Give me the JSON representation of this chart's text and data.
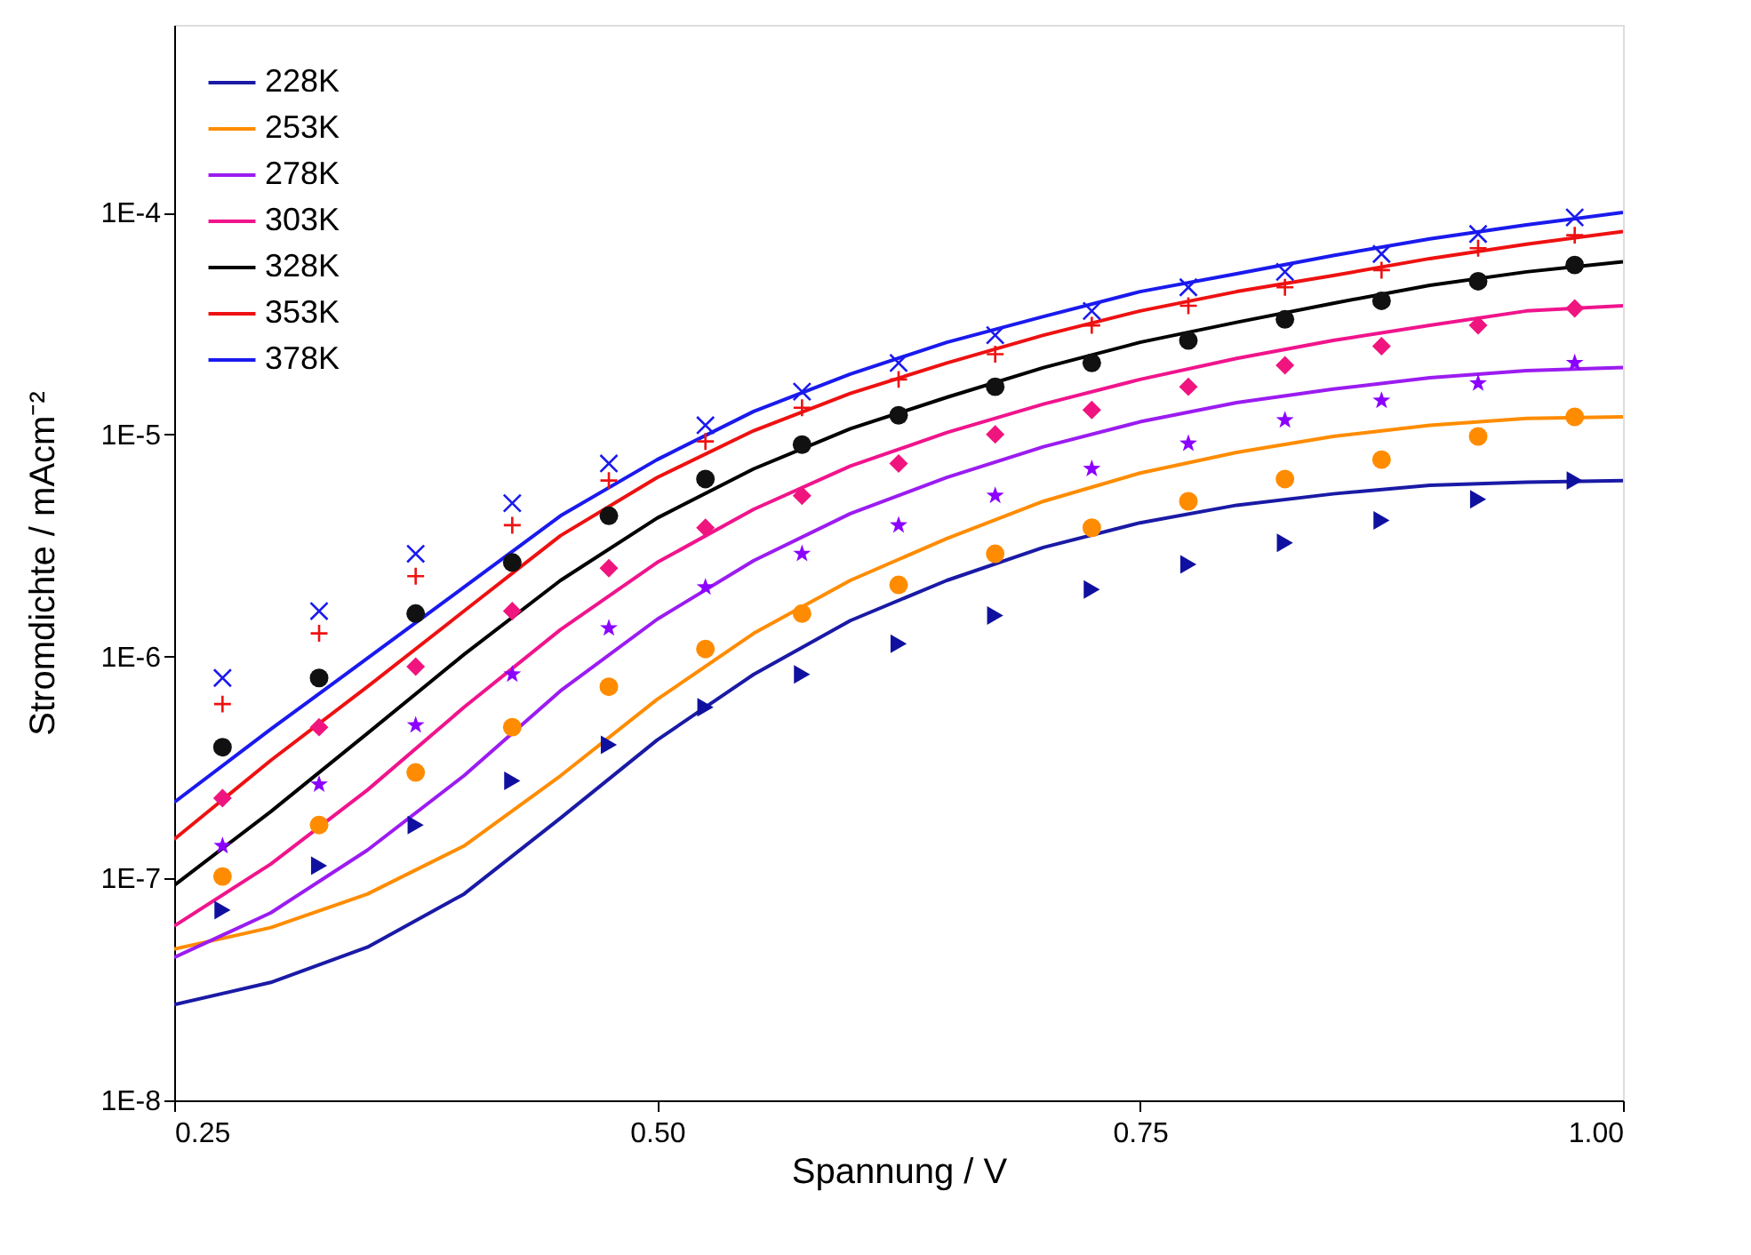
{
  "chart_data": {
    "type": "line",
    "xlabel": "Spannung / V",
    "ylabel": "Stromdichte / mAcm⁻²",
    "log": "y",
    "xlim": [
      0.25,
      1.0
    ],
    "xticks": [
      0.25,
      {
        "value": 0.5,
        "label": "0.50"
      },
      0.75,
      {
        "value": 1.0,
        "label": "1.00"
      }
    ],
    "ylim": [
      1e-08,
      0.0007
    ],
    "yticks": [
      {
        "value": 1e-08,
        "label": "1E-8"
      },
      {
        "value": 1e-07,
        "label": "1E-7"
      },
      {
        "value": 1e-06,
        "label": "1E-6"
      },
      {
        "value": 1e-05,
        "label": "1E-5"
      },
      {
        "value": 0.0001,
        "label": "1E-4"
      }
    ],
    "grid": false,
    "legend": "top left",
    "series": [
      {
        "name": "228K",
        "color": "#1a1aa6",
        "x": [
          0.25,
          0.3,
          0.35,
          0.4,
          0.45,
          0.5,
          0.55,
          0.6,
          0.65,
          0.7,
          0.75,
          0.8,
          0.85,
          0.9,
          0.95,
          1.0
        ],
        "values": [
          2.7e-08,
          3.4e-08,
          4.9e-08,
          8.5e-08,
          1.87e-07,
          4.2e-07,
          8.3e-07,
          1.45e-06,
          2.2e-06,
          3.1e-06,
          4e-06,
          4.8e-06,
          5.4e-06,
          5.9e-06,
          6.1e-06,
          6.2e-06
        ]
      },
      {
        "name": "253K",
        "color": "#ff8c00",
        "x": [
          0.25,
          0.3,
          0.35,
          0.4,
          0.45,
          0.5,
          0.55,
          0.6,
          0.65,
          0.7,
          0.75,
          0.8,
          0.85,
          0.9,
          0.95,
          1.0
        ],
        "values": [
          4.8e-08,
          6e-08,
          8.5e-08,
          1.4e-07,
          2.9e-07,
          6.4e-07,
          1.27e-06,
          2.2e-06,
          3.4e-06,
          5e-06,
          6.7e-06,
          8.3e-06,
          9.8e-06,
          1.1e-05,
          1.18e-05,
          1.2e-05
        ]
      },
      {
        "name": "278K",
        "color": "#9b1cf0",
        "x": [
          0.25,
          0.3,
          0.35,
          0.4,
          0.45,
          0.5,
          0.55,
          0.6,
          0.65,
          0.7,
          0.75,
          0.8,
          0.85,
          0.9,
          0.95,
          1.0
        ],
        "values": [
          4.4e-08,
          7e-08,
          1.34e-07,
          2.9e-07,
          7e-07,
          1.47e-06,
          2.7e-06,
          4.4e-06,
          6.4e-06,
          8.8e-06,
          1.14e-05,
          1.39e-05,
          1.6e-05,
          1.8e-05,
          1.94e-05,
          2e-05
        ]
      },
      {
        "name": "303K",
        "color": "#f0148c",
        "x": [
          0.25,
          0.3,
          0.35,
          0.4,
          0.45,
          0.5,
          0.55,
          0.6,
          0.65,
          0.7,
          0.75,
          0.8,
          0.85,
          0.9,
          0.95,
          1.0
        ],
        "values": [
          6.1e-08,
          1.16e-07,
          2.5e-07,
          5.9e-07,
          1.32e-06,
          2.65e-06,
          4.6e-06,
          7.2e-06,
          1.02e-05,
          1.37e-05,
          1.77e-05,
          2.2e-05,
          2.65e-05,
          3.1e-05,
          3.6e-05,
          3.8e-05
        ]
      },
      {
        "name": "328K",
        "color": "#000000",
        "x": [
          0.25,
          0.3,
          0.35,
          0.4,
          0.45,
          0.5,
          0.55,
          0.6,
          0.65,
          0.7,
          0.75,
          0.8,
          0.85,
          0.9,
          0.95,
          1.0
        ],
        "values": [
          9.3e-08,
          2e-07,
          4.5e-07,
          1.02e-06,
          2.2e-06,
          4.2e-06,
          7e-06,
          1.06e-05,
          1.47e-05,
          2e-05,
          2.6e-05,
          3.2e-05,
          3.9e-05,
          4.7e-05,
          5.4e-05,
          6e-05
        ]
      },
      {
        "name": "353K",
        "color": "#ee1111",
        "x": [
          0.25,
          0.3,
          0.35,
          0.4,
          0.45,
          0.5,
          0.55,
          0.6,
          0.65,
          0.7,
          0.75,
          0.8,
          0.85,
          0.9,
          0.95,
          1.0
        ],
        "values": [
          1.5e-07,
          3.4e-07,
          7.3e-07,
          1.6e-06,
          3.5e-06,
          6.4e-06,
          1.04e-05,
          1.53e-05,
          2.1e-05,
          2.8e-05,
          3.6e-05,
          4.4e-05,
          5.2e-05,
          6.2e-05,
          7.2e-05,
          8.2e-05
        ]
      },
      {
        "name": "378K",
        "color": "#1a1aee",
        "x": [
          0.25,
          0.3,
          0.35,
          0.4,
          0.45,
          0.5,
          0.55,
          0.6,
          0.65,
          0.7,
          0.75,
          0.8,
          0.85,
          0.9,
          0.95,
          1.0
        ],
        "values": [
          2.2e-07,
          4.7e-07,
          9.8e-07,
          2.05e-06,
          4.3e-06,
          7.7e-06,
          1.27e-05,
          1.87e-05,
          2.6e-05,
          3.4e-05,
          4.4e-05,
          5.3e-05,
          6.4e-05,
          7.6e-05,
          8.8e-05,
          0.0001
        ]
      },
      {
        "type": "scatter",
        "marker": "triangle",
        "color": "#1010a0",
        "x": [
          0.275,
          0.325,
          0.375,
          0.425,
          0.475,
          0.525,
          0.575,
          0.625,
          0.675,
          0.725,
          0.775,
          0.825,
          0.875,
          0.925,
          0.975
        ],
        "values": [
          7.2e-08,
          1.14e-07,
          1.74e-07,
          2.75e-07,
          4e-07,
          5.9e-07,
          8.3e-07,
          1.14e-06,
          1.53e-06,
          2e-06,
          2.6e-06,
          3.25e-06,
          4.1e-06,
          5.1e-06,
          6.2e-06
        ]
      },
      {
        "type": "scatter",
        "marker": "circle",
        "color": "#ff8c00",
        "x": [
          0.275,
          0.325,
          0.375,
          0.425,
          0.475,
          0.525,
          0.575,
          0.625,
          0.675,
          0.725,
          0.775,
          0.825,
          0.875,
          0.925,
          0.975
        ],
        "values": [
          1.02e-07,
          1.74e-07,
          3e-07,
          4.8e-07,
          7.3e-07,
          1.08e-06,
          1.56e-06,
          2.1e-06,
          2.9e-06,
          3.8e-06,
          5e-06,
          6.3e-06,
          7.7e-06,
          9.8e-06,
          1.2e-05
        ]
      },
      {
        "type": "scatter",
        "marker": "star",
        "color": "#8b00ff",
        "x": [
          0.275,
          0.325,
          0.375,
          0.425,
          0.475,
          0.525,
          0.575,
          0.625,
          0.675,
          0.725,
          0.775,
          0.825,
          0.875,
          0.925,
          0.975
        ],
        "values": [
          1.4e-07,
          2.65e-07,
          4.9e-07,
          8.3e-07,
          1.34e-06,
          2.05e-06,
          2.9e-06,
          3.9e-06,
          5.3e-06,
          7e-06,
          9.1e-06,
          1.16e-05,
          1.42e-05,
          1.7e-05,
          2.1e-05
        ]
      },
      {
        "type": "scatter",
        "marker": "diamond",
        "color": "#f0147e",
        "x": [
          0.275,
          0.325,
          0.375,
          0.425,
          0.475,
          0.525,
          0.575,
          0.625,
          0.675,
          0.725,
          0.775,
          0.825,
          0.875,
          0.925,
          0.975
        ],
        "values": [
          2.3e-07,
          4.8e-07,
          9e-07,
          1.6e-06,
          2.5e-06,
          3.8e-06,
          5.3e-06,
          7.4e-06,
          1e-05,
          1.29e-05,
          1.64e-05,
          2.05e-05,
          2.5e-05,
          3.1e-05,
          3.7e-05
        ]
      },
      {
        "type": "scatter",
        "marker": "circle",
        "color": "#111111",
        "x": [
          0.275,
          0.325,
          0.375,
          0.425,
          0.475,
          0.525,
          0.575,
          0.625,
          0.675,
          0.725,
          0.775,
          0.825,
          0.875,
          0.925,
          0.975
        ],
        "values": [
          3.9e-07,
          8e-07,
          1.56e-06,
          2.65e-06,
          4.3e-06,
          6.3e-06,
          9e-06,
          1.22e-05,
          1.64e-05,
          2.1e-05,
          2.65e-05,
          3.3e-05,
          4e-05,
          4.9e-05,
          5.8e-05
        ]
      },
      {
        "type": "scatter",
        "marker": "plus",
        "color": "#ee1111",
        "x": [
          0.275,
          0.325,
          0.375,
          0.425,
          0.475,
          0.525,
          0.575,
          0.625,
          0.675,
          0.725,
          0.775,
          0.825,
          0.875,
          0.925,
          0.975
        ],
        "values": [
          6.1e-07,
          1.27e-06,
          2.3e-06,
          3.9e-06,
          6.2e-06,
          9.3e-06,
          1.32e-05,
          1.77e-05,
          2.3e-05,
          3.1e-05,
          3.8e-05,
          4.6e-05,
          5.5e-05,
          6.9e-05,
          7.9e-05
        ]
      },
      {
        "type": "scatter",
        "marker": "x",
        "color": "#1a1aee",
        "x": [
          0.275,
          0.325,
          0.375,
          0.425,
          0.475,
          0.525,
          0.575,
          0.625,
          0.675,
          0.725,
          0.775,
          0.825,
          0.875,
          0.925,
          0.975
        ],
        "values": [
          8e-07,
          1.6e-06,
          2.9e-06,
          4.9e-06,
          7.4e-06,
          1.1e-05,
          1.56e-05,
          2.1e-05,
          2.8e-05,
          3.6e-05,
          4.6e-05,
          5.4e-05,
          6.5e-05,
          8e-05,
          9.5e-05
        ]
      }
    ]
  }
}
